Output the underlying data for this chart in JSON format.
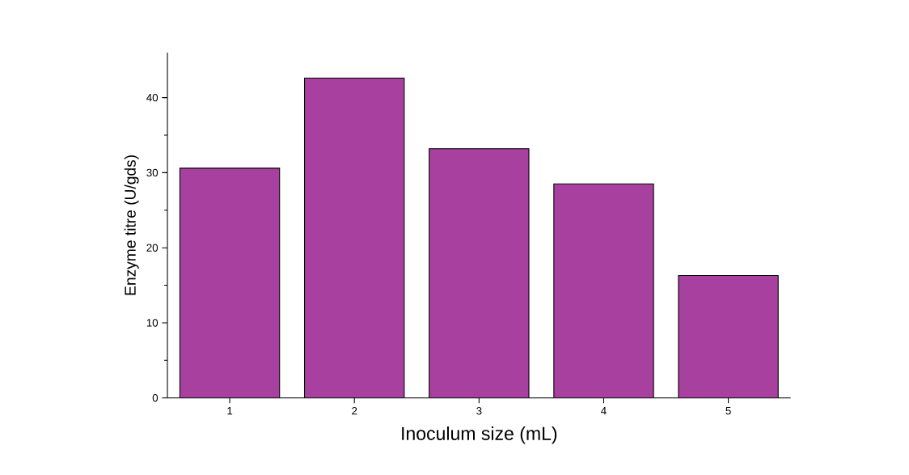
{
  "chart_data": {
    "type": "bar",
    "xlabel": "Inoculum size (mL)",
    "ylabel": "Enzyme titre (U/gds)",
    "categories": [
      "1",
      "2",
      "3",
      "4",
      "5"
    ],
    "values": [
      30.6,
      42.6,
      33.2,
      28.5,
      16.3
    ],
    "color": "#a8409f",
    "ylim": [
      0,
      46
    ],
    "yticks": [
      0,
      10,
      20,
      30,
      40
    ],
    "grid": false
  }
}
